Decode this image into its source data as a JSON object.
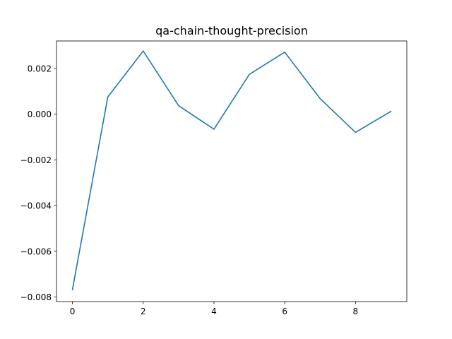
{
  "chart_data": {
    "type": "line",
    "title": "qa-chain-thought-precision",
    "xlabel": "",
    "ylabel": "",
    "xlim": [
      -0.45,
      9.45
    ],
    "ylim": [
      -0.0082,
      0.0032
    ],
    "x_ticks": [
      0,
      2,
      4,
      6,
      8
    ],
    "x_tick_labels": [
      "0",
      "2",
      "4",
      "6",
      "8"
    ],
    "y_ticks": [
      -0.008,
      -0.006,
      -0.004,
      -0.002,
      0.0,
      0.002
    ],
    "y_tick_labels": [
      "−0.008",
      "−0.006",
      "−0.004",
      "−0.002",
      "0.000",
      "0.002"
    ],
    "grid": false,
    "legend": "none",
    "series": [
      {
        "color": "#1f77b4",
        "x": [
          0,
          1,
          2,
          3,
          4,
          5,
          6,
          7,
          8,
          9
        ],
        "y": [
          -0.00768,
          0.00075,
          0.00276,
          0.00037,
          -0.00066,
          0.00174,
          0.00271,
          0.00068,
          -0.0008,
          0.00012
        ]
      }
    ]
  }
}
